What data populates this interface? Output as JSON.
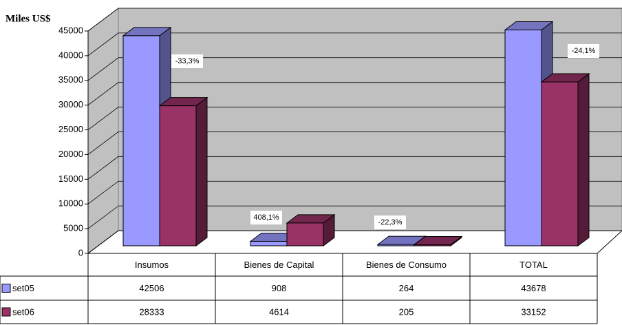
{
  "chart_data": {
    "type": "bar",
    "y_label": "Miles US$",
    "categories": [
      "Insumos",
      "Bienes de Capital",
      "Bienes de Consumo",
      "TOTAL"
    ],
    "series": [
      {
        "name": "set05",
        "color": "#9999ff",
        "values": [
          42506,
          908,
          264,
          43678
        ]
      },
      {
        "name": "set06",
        "color": "#993366",
        "values": [
          28333,
          4614,
          205,
          33152
        ]
      }
    ],
    "annotations": [
      "-33,3%",
      "408,1%",
      "-22,3%",
      "-24,1%"
    ],
    "ylim": [
      0,
      45000
    ],
    "yticks": [
      0,
      5000,
      10000,
      15000,
      20000,
      25000,
      30000,
      35000,
      40000,
      45000
    ],
    "grid": true
  }
}
